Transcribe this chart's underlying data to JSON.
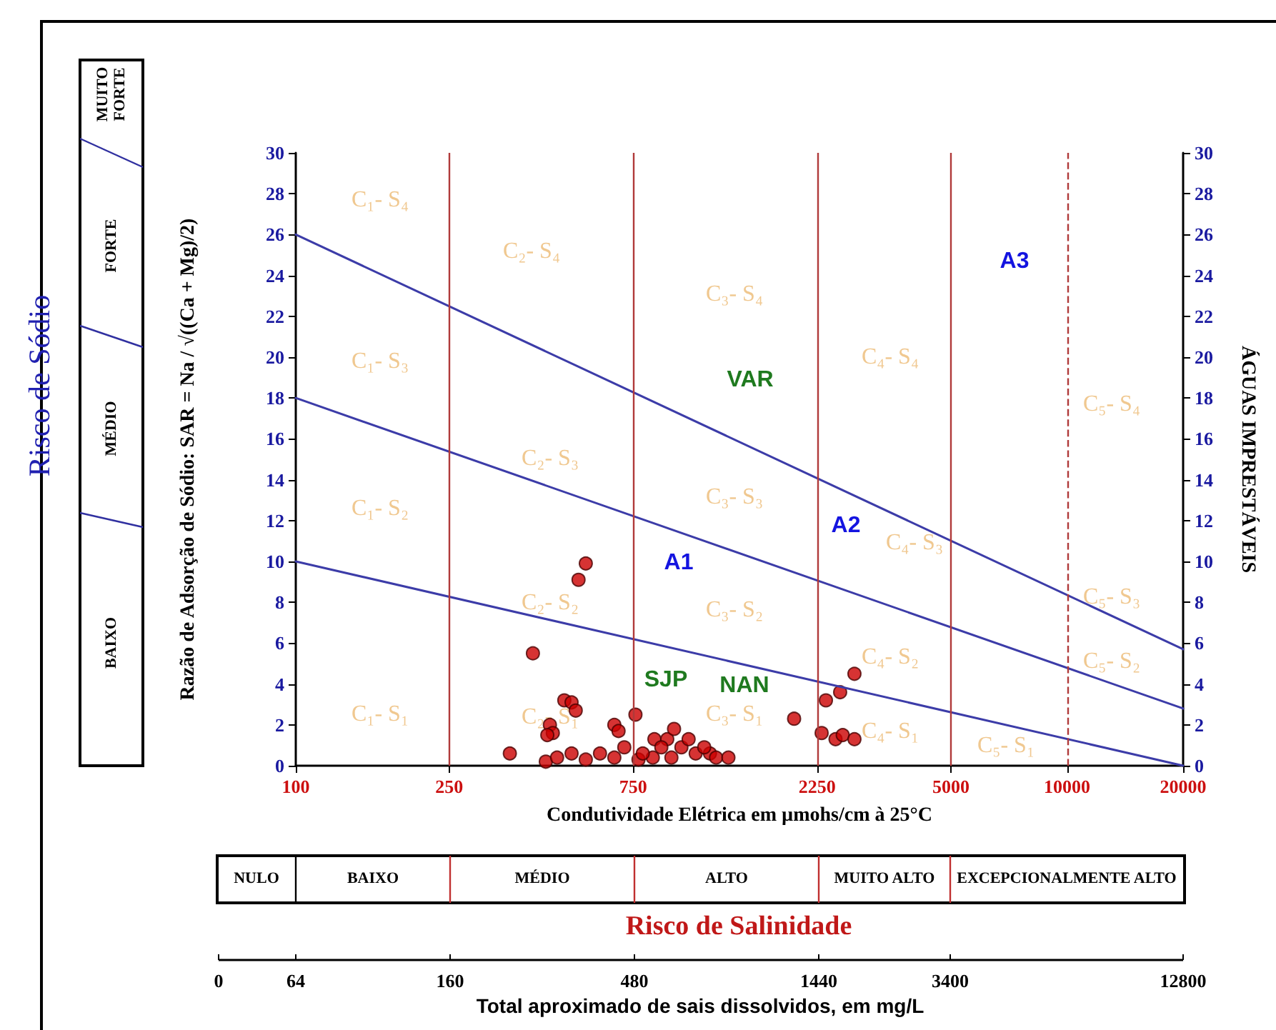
{
  "chart_data": [
    {
      "type": "scatter",
      "xlabel": "Condutividade Elétrica em µmohs/cm à 25°C",
      "ylabel": "Razão de Adsorção de Sódio: SAR = Na / √((Ca + Mg)/2)",
      "y2label": "ÁGUAS IMPRESTÁVEIS",
      "log": "x",
      "xlim": [
        100,
        20000
      ],
      "xticks": [
        100,
        250,
        750,
        2250,
        5000,
        10000,
        20000
      ],
      "ylim": [
        0,
        30
      ],
      "yticks": [
        0,
        2,
        4,
        6,
        8,
        10,
        12,
        14,
        16,
        18,
        20,
        22,
        24,
        26,
        28,
        30
      ],
      "y2lim": [
        0,
        30
      ],
      "y2ticks": [
        0,
        2,
        4,
        6,
        8,
        10,
        12,
        14,
        16,
        18,
        20,
        22,
        24,
        26,
        28,
        30
      ],
      "grid": false,
      "marker": "circle",
      "series": [
        {
          "type": "line",
          "color": "#3c3ca8",
          "marker": "none",
          "line_style": "solid",
          "x": [
            100,
            20000
          ],
          "values": [
            26,
            5.7
          ]
        },
        {
          "type": "line",
          "color": "#3c3ca8",
          "marker": "none",
          "line_style": "solid",
          "x": [
            100,
            20000
          ],
          "values": [
            18,
            2.8
          ]
        },
        {
          "type": "line",
          "color": "#3c3ca8",
          "marker": "none",
          "line_style": "solid",
          "x": [
            100,
            20000
          ],
          "values": [
            10,
            0
          ]
        },
        {
          "type": "scatter",
          "color": "#cc0000",
          "x": [
            565,
            541,
            412,
            497,
            519,
            532,
            456,
            464,
            449,
            670,
            687,
            760,
            359,
            445,
            476,
            519,
            565,
            615,
            670,
            711,
            774,
            851,
            919,
            957,
            887,
            1000,
            1089,
            1186,
            1230,
            1324,
            843,
            794,
            1044,
            942,
            1146,
            1960,
            2810,
            2580,
            2370,
            2310,
            2510,
            2620,
            2810
          ],
          "values": [
            9.9,
            9.1,
            5.5,
            3.2,
            3.1,
            2.7,
            2.0,
            1.6,
            1.5,
            2.0,
            1.7,
            2.5,
            0.6,
            0.2,
            0.4,
            0.6,
            0.3,
            0.6,
            0.4,
            0.9,
            0.3,
            1.3,
            1.3,
            1.8,
            0.9,
            0.9,
            0.6,
            0.6,
            0.4,
            0.4,
            0.4,
            0.6,
            1.3,
            0.4,
            0.9,
            2.3,
            4.5,
            3.6,
            3.2,
            1.6,
            1.3,
            1.5,
            1.3
          ]
        }
      ],
      "ref_lines": [
        {
          "axis": "x",
          "value": 250,
          "color": "#b03a3a",
          "line_style": "solid"
        },
        {
          "axis": "x",
          "value": 750,
          "color": "#b03a3a",
          "line_style": "solid"
        },
        {
          "axis": "x",
          "value": 2250,
          "color": "#b03a3a",
          "line_style": "solid"
        },
        {
          "axis": "x",
          "value": 5000,
          "color": "#b03a3a",
          "line_style": "solid"
        },
        {
          "axis": "x",
          "value": 10000,
          "color": "#b03a3a",
          "line_style": "dashed"
        }
      ],
      "annotations": [
        "C₁- S₄",
        "C₂- S₄",
        "C₃- S₄",
        "C₁- S₃",
        "C₄- S₄",
        "C₅- S₄",
        "C₂- S₃",
        "C₃- S₃",
        "C₁- S₂",
        "C₄- S₃",
        "C₂- S₂",
        "C₃- S₂",
        "C₅- S₃",
        "C₄- S₂",
        "C₅- S₂",
        "C₁- S₁",
        "C₂- S₁",
        "C₃- S₁",
        "C₄- S₁",
        "C₅- S₁",
        "A3",
        "VAR",
        "A2",
        "A1",
        "SJP",
        "NAN"
      ]
    },
    {
      "type": "other",
      "title": "Risco de Sódio",
      "categories": [
        "MUITO FORTE",
        "FORTE",
        "MÉDIO",
        "BAIXO"
      ]
    },
    {
      "type": "other",
      "title": "Risco de Salinidade",
      "categories": [
        "NULO",
        "BAIXO",
        "MÉDIO",
        "ALTO",
        "MUITO ALTO",
        "EXCEPCIONALMENTE ALTO"
      ]
    },
    {
      "type": "other",
      "xlabel": "Total aproximado de sais dissolvidos, em mg/L",
      "categories": [
        "0",
        "64",
        "160",
        "480",
        "1440",
        "3400",
        "12800"
      ]
    }
  ]
}
